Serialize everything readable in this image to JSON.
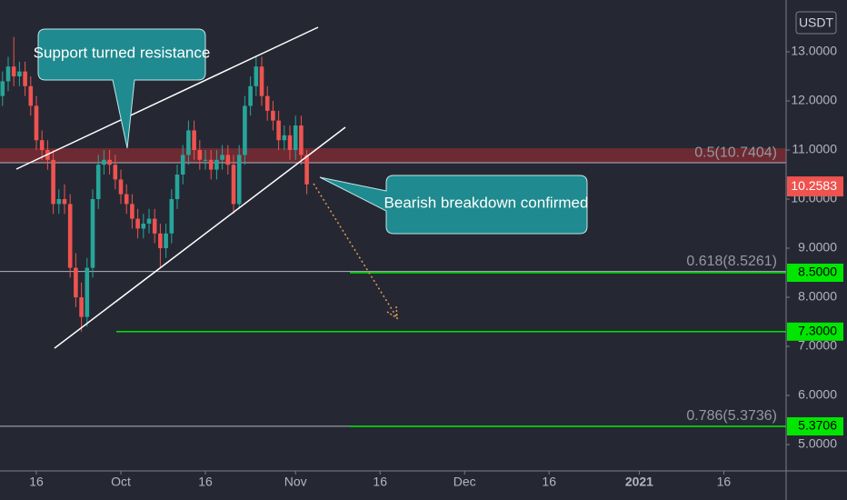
{
  "chart_data": {
    "type": "candlestick",
    "x": [
      -6,
      -5,
      -4,
      -3,
      -2,
      -1,
      0,
      1,
      2,
      3,
      4,
      5,
      6,
      7,
      8,
      9,
      10,
      11,
      12,
      13,
      14,
      15,
      16,
      17,
      18,
      19,
      20,
      21,
      22,
      23,
      24,
      25,
      26,
      27,
      28,
      29,
      30,
      31,
      32,
      33,
      34,
      35,
      36,
      37,
      38,
      39,
      40,
      41,
      42,
      43,
      44,
      45,
      46,
      47,
      48
    ],
    "open": [
      12.1,
      12.4,
      12.7,
      12.5,
      12.6,
      12.3,
      11.9,
      11.2,
      11.0,
      10.8,
      9.9,
      10.0,
      9.9,
      8.6,
      8.0,
      7.6,
      8.6,
      10.0,
      10.7,
      10.8,
      10.7,
      10.4,
      10.1,
      9.9,
      9.6,
      9.4,
      9.5,
      9.6,
      9.3,
      9.0,
      9.3,
      10.0,
      10.5,
      10.9,
      11.4,
      11.0,
      10.8,
      10.8,
      10.6,
      10.8,
      10.9,
      10.7,
      9.9,
      10.9,
      11.9,
      12.3,
      12.7,
      12.1,
      11.8,
      11.6,
      11.2,
      11.3,
      11.0,
      11.5,
      10.9
    ],
    "high": [
      12.6,
      12.9,
      13.3,
      12.8,
      12.8,
      12.5,
      12.1,
      11.4,
      11.2,
      11.0,
      10.2,
      10.3,
      10.1,
      8.9,
      8.3,
      8.8,
      10.2,
      10.9,
      11.0,
      11.0,
      10.9,
      10.6,
      10.3,
      10.1,
      9.8,
      9.7,
      9.8,
      9.8,
      9.5,
      9.5,
      10.2,
      10.7,
      11.1,
      11.6,
      11.6,
      11.2,
      11.0,
      11.0,
      11.0,
      11.1,
      11.1,
      10.9,
      11.1,
      12.1,
      12.5,
      12.9,
      12.9,
      12.3,
      12.0,
      11.8,
      11.5,
      11.5,
      11.7,
      11.7,
      11.0
    ],
    "low": [
      11.9,
      12.2,
      12.3,
      12.3,
      12.1,
      11.7,
      11.0,
      10.8,
      10.6,
      9.7,
      9.7,
      9.7,
      8.4,
      7.8,
      7.3,
      7.4,
      8.4,
      9.8,
      10.5,
      10.5,
      10.2,
      9.9,
      9.7,
      9.4,
      9.2,
      9.2,
      9.3,
      9.1,
      8.6,
      8.8,
      9.1,
      9.8,
      10.3,
      10.7,
      10.8,
      10.6,
      10.6,
      10.4,
      10.4,
      10.6,
      10.5,
      9.7,
      9.8,
      10.7,
      11.7,
      12.1,
      11.9,
      11.6,
      11.4,
      11.0,
      11.0,
      10.8,
      10.8,
      10.7,
      10.1
    ],
    "close": [
      12.4,
      12.7,
      12.5,
      12.6,
      12.3,
      11.9,
      11.2,
      11.0,
      10.8,
      9.9,
      10.0,
      9.9,
      8.6,
      8.0,
      7.6,
      8.6,
      10.0,
      10.7,
      10.8,
      10.7,
      10.4,
      10.1,
      9.9,
      9.6,
      9.4,
      9.5,
      9.6,
      9.3,
      9.0,
      9.3,
      10.0,
      10.5,
      10.9,
      11.4,
      11.0,
      10.8,
      10.8,
      10.6,
      10.8,
      10.9,
      10.7,
      9.9,
      10.9,
      11.9,
      12.3,
      12.7,
      12.1,
      11.8,
      11.6,
      11.2,
      11.3,
      11.0,
      11.5,
      10.9,
      10.3
    ],
    "up_color": "#26a69a",
    "down_color": "#ef5350",
    "xlim": [
      -6.45,
      133.06
    ],
    "xticks": [
      {
        "value": 0,
        "label": "16"
      },
      {
        "value": 15,
        "label": "Oct"
      },
      {
        "value": 30,
        "label": "16"
      },
      {
        "value": 46,
        "label": "Nov"
      },
      {
        "value": 61,
        "label": "16"
      },
      {
        "value": 76,
        "label": "Dec"
      },
      {
        "value": 91,
        "label": "16"
      },
      {
        "value": 107,
        "label": "2021"
      },
      {
        "value": 122,
        "label": "16"
      }
    ],
    "ylim": [
      4.463,
      14.056
    ],
    "yticks": [
      {
        "value": 5,
        "label": "5.0000"
      },
      {
        "value": 6,
        "label": "6.0000"
      },
      {
        "value": 7,
        "label": "7.0000"
      },
      {
        "value": 8,
        "label": "8.0000"
      },
      {
        "value": 9,
        "label": "9.0000"
      },
      {
        "value": 10,
        "label": "10.0000"
      },
      {
        "value": 11,
        "label": "11.0000"
      },
      {
        "value": 12,
        "label": "12.0000"
      },
      {
        "value": 13,
        "label": "13.0000"
      }
    ],
    "y_axis_label": "USDT",
    "last_price": {
      "value": 10.2583,
      "label": "10.2583"
    },
    "levels": [
      {
        "value": 10.7404,
        "label": "0.5(10.7404)"
      },
      {
        "value": 8.5261,
        "label": "0.618(8.5261)"
      },
      {
        "value": 5.3736,
        "label": "0.786(5.3736)"
      }
    ],
    "targets": [
      {
        "value": 8.5,
        "label": "8.5000"
      },
      {
        "value": 7.3,
        "label": "7.3000"
      },
      {
        "value": 5.3706,
        "label": "5.3706"
      }
    ],
    "annotations": [
      "Support turned resistance",
      "Bearish breakdown confirmed"
    ]
  }
}
